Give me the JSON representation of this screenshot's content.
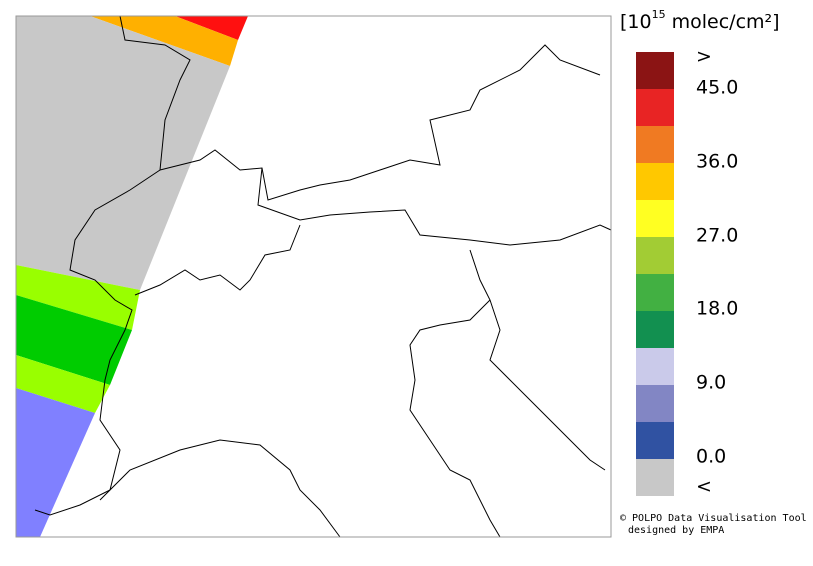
{
  "legend": {
    "unit": {
      "prefix": "[10",
      "exponent": "15",
      "suffix": " molec/cm²]"
    },
    "colors": [
      "#8b1414",
      "#e82424",
      "#f07a22",
      "#ffc800",
      "#ffff22",
      "#a2cc34",
      "#42b042",
      "#129050",
      "#cacaea",
      "#8286c4",
      "#3052a2",
      "#c8c8c8"
    ],
    "labels": [
      ">",
      "45.0",
      "36.0",
      "27.0",
      "18.0",
      "9.0",
      "0.0",
      "<"
    ]
  },
  "credit": [
    "© POLPO Data Visualisation Tool",
    "designed by EMPA"
  ]
}
